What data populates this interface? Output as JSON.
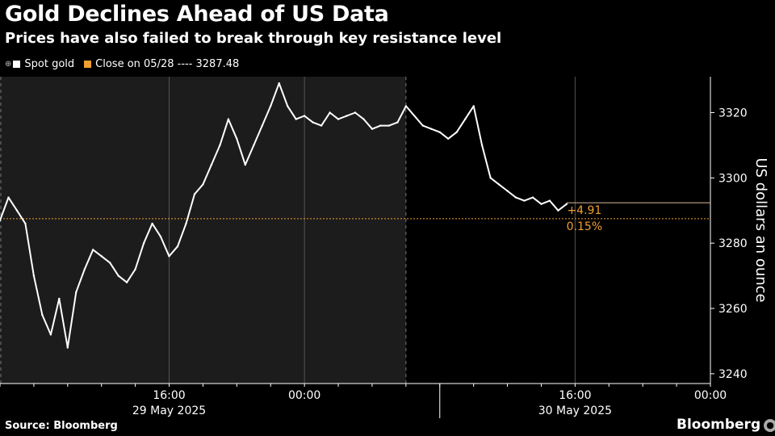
{
  "header": {
    "title": "Gold Declines Ahead of US Data",
    "subtitle": "Prices have also failed to break through key resistance level"
  },
  "legend": {
    "series_label": "Spot gold",
    "reference_label": "Close on 05/28 ---- 3287.48"
  },
  "colors": {
    "background": "#000000",
    "plot_shade": "#1c1c1c",
    "line": "#ffffff",
    "reference": "#f0a030",
    "grid": "#555555"
  },
  "footer": {
    "source": "Source: Bloomberg",
    "brand": "Bloomberg"
  },
  "chart_data": {
    "type": "line",
    "title": "Gold Declines Ahead of US Data",
    "subtitle": "Prices have also failed to break through key resistance level",
    "ylabel": "US dollars an ounce",
    "xlabel": "",
    "ylim": [
      3237,
      3331
    ],
    "y_ticks": [
      3240,
      3260,
      3280,
      3300,
      3320
    ],
    "x_range": [
      "2025-05-29 06:00",
      "2025-05-31 00:00"
    ],
    "x_ticks": [
      {
        "t": "2025-05-29 16:00",
        "label": "16:00"
      },
      {
        "t": "2025-05-30 00:00",
        "label": "00:00"
      },
      {
        "t": "2025-05-30 16:00",
        "label": "16:00"
      },
      {
        "t": "2025-05-31 00:00",
        "label": "00:00"
      }
    ],
    "date_labels": [
      {
        "t": "2025-05-29 16:00",
        "label": "29 May 2025"
      },
      {
        "t": "2025-05-30 16:00",
        "label": "30 May 2025"
      }
    ],
    "day_boundary": "2025-05-30 08:00",
    "shaded_region": [
      "2025-05-29 06:00",
      "2025-05-30 06:00"
    ],
    "grid": true,
    "legend_position": "top-left",
    "reference_line": {
      "name": "Close on 05/28",
      "value": 3287.48
    },
    "last_value_line": 3292.39,
    "annotation": {
      "change": "+4.91",
      "percent": "0.15%"
    },
    "series": [
      {
        "name": "Spot gold",
        "x": [
          "2025-05-29 06:00",
          "2025-05-29 06:30",
          "2025-05-29 07:00",
          "2025-05-29 07:30",
          "2025-05-29 08:00",
          "2025-05-29 08:30",
          "2025-05-29 09:00",
          "2025-05-29 09:30",
          "2025-05-29 10:00",
          "2025-05-29 10:30",
          "2025-05-29 11:00",
          "2025-05-29 11:30",
          "2025-05-29 12:00",
          "2025-05-29 12:30",
          "2025-05-29 13:00",
          "2025-05-29 13:30",
          "2025-05-29 14:00",
          "2025-05-29 14:30",
          "2025-05-29 15:00",
          "2025-05-29 15:30",
          "2025-05-29 16:00",
          "2025-05-29 16:30",
          "2025-05-29 17:00",
          "2025-05-29 17:30",
          "2025-05-29 18:00",
          "2025-05-29 18:30",
          "2025-05-29 19:00",
          "2025-05-29 19:30",
          "2025-05-29 20:00",
          "2025-05-29 20:30",
          "2025-05-29 21:00",
          "2025-05-29 21:30",
          "2025-05-29 22:00",
          "2025-05-29 22:30",
          "2025-05-29 23:00",
          "2025-05-29 23:30",
          "2025-05-30 00:00",
          "2025-05-30 00:30",
          "2025-05-30 01:00",
          "2025-05-30 01:30",
          "2025-05-30 02:00",
          "2025-05-30 02:30",
          "2025-05-30 03:00",
          "2025-05-30 03:30",
          "2025-05-30 04:00",
          "2025-05-30 04:30",
          "2025-05-30 05:00",
          "2025-05-30 05:30",
          "2025-05-30 06:00",
          "2025-05-30 07:00",
          "2025-05-30 07:30",
          "2025-05-30 08:00",
          "2025-05-30 08:30",
          "2025-05-30 09:00",
          "2025-05-30 09:30",
          "2025-05-30 10:00",
          "2025-05-30 10:30",
          "2025-05-30 11:00",
          "2025-05-30 11:30",
          "2025-05-30 12:00",
          "2025-05-30 12:30",
          "2025-05-30 13:00",
          "2025-05-30 13:30",
          "2025-05-30 14:00",
          "2025-05-30 14:30",
          "2025-05-30 15:00",
          "2025-05-30 15:30"
        ],
        "values": [
          3287,
          3294,
          3290,
          3286,
          3270,
          3258,
          3252,
          3263,
          3248,
          3265,
          3272,
          3278,
          3276,
          3274,
          3270,
          3268,
          3272,
          3280,
          3286,
          3282,
          3276,
          3279,
          3286,
          3295,
          3298,
          3304,
          3310,
          3318,
          3312,
          3304,
          3310,
          3316,
          3322,
          3329,
          3322,
          3318,
          3319,
          3317,
          3316,
          3320,
          3318,
          3319,
          3320,
          3318,
          3315,
          3316,
          3316,
          3317,
          3322,
          3316,
          3315,
          3314,
          3312,
          3314,
          3318,
          3322,
          3310,
          3300,
          3298,
          3296,
          3294,
          3293,
          3294,
          3292,
          3293,
          3290,
          3292
        ]
      }
    ]
  }
}
